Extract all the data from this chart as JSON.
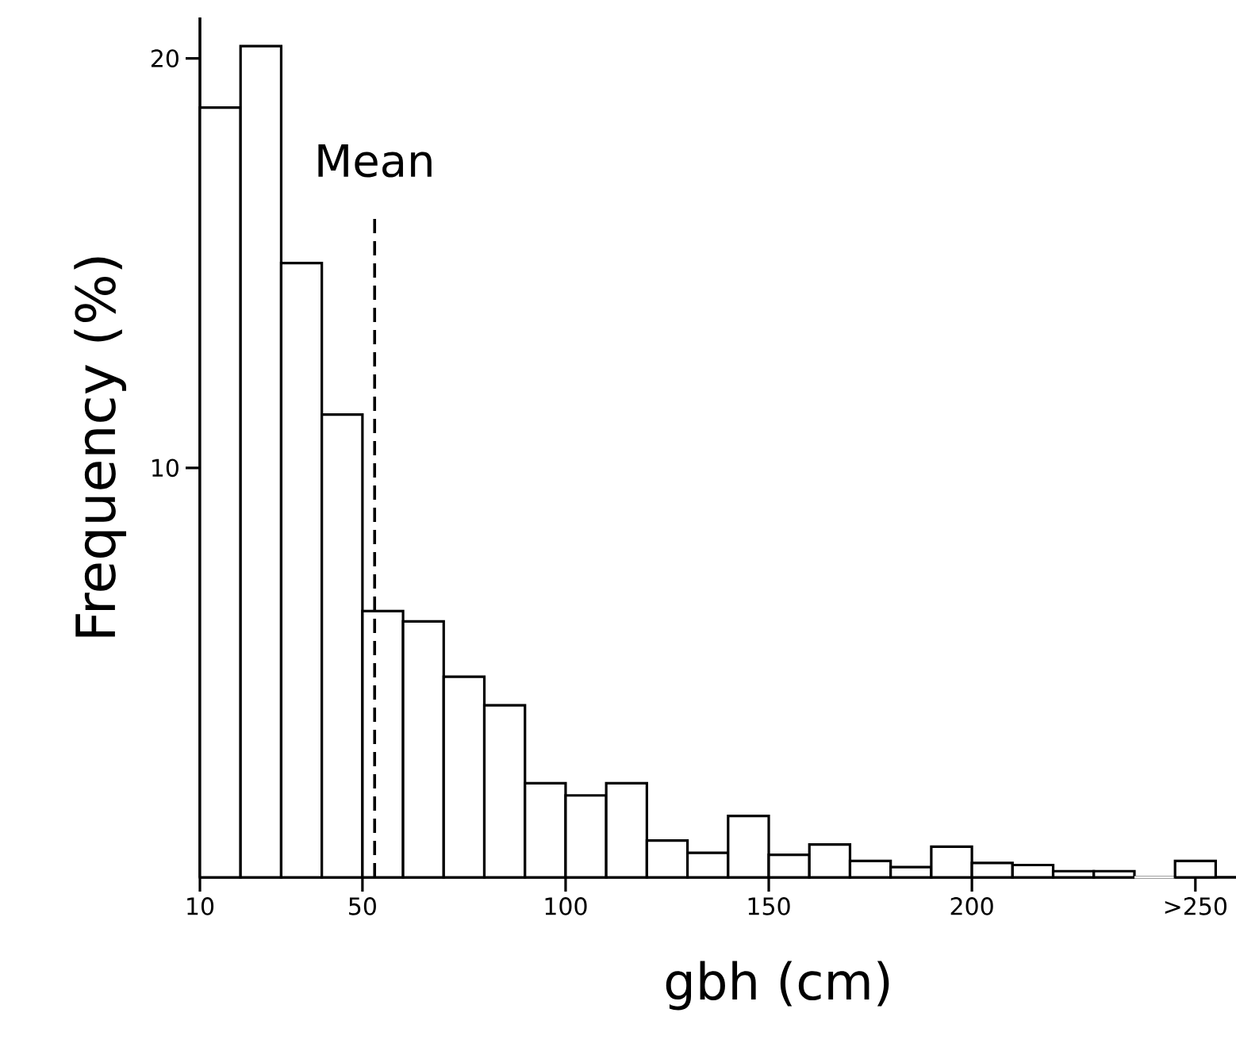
{
  "chart_data": {
    "type": "histogram",
    "xlabel": "gbh (cm)",
    "ylabel": "Frequency (%)",
    "bins": [
      10,
      20,
      30,
      40,
      50,
      60,
      70,
      80,
      90,
      100,
      110,
      120,
      130,
      140,
      150,
      160,
      170,
      180,
      190,
      200,
      210,
      220,
      230,
      240,
      250,
      260
    ],
    "values": [
      18.8,
      20.3,
      15.0,
      11.3,
      6.5,
      6.25,
      4.9,
      4.2,
      2.3,
      2.0,
      2.3,
      0.9,
      0.6,
      1.5,
      0.55,
      0.8,
      0.4,
      0.25,
      0.75,
      0.35,
      0.3,
      0.15,
      0.15,
      0,
      0.4
    ],
    "color": "#ffffff",
    "xlim": [
      10,
      265
    ],
    "ylim": [
      0,
      21
    ],
    "xticks": [
      10,
      50,
      100,
      150,
      200,
      {
        "value": 255,
        "label": ">250"
      }
    ],
    "yticks": [
      10,
      20
    ],
    "ref_lines": [
      {
        "axis": "x",
        "value": 53,
        "label": "Mean",
        "line_style": "dashed"
      }
    ]
  }
}
